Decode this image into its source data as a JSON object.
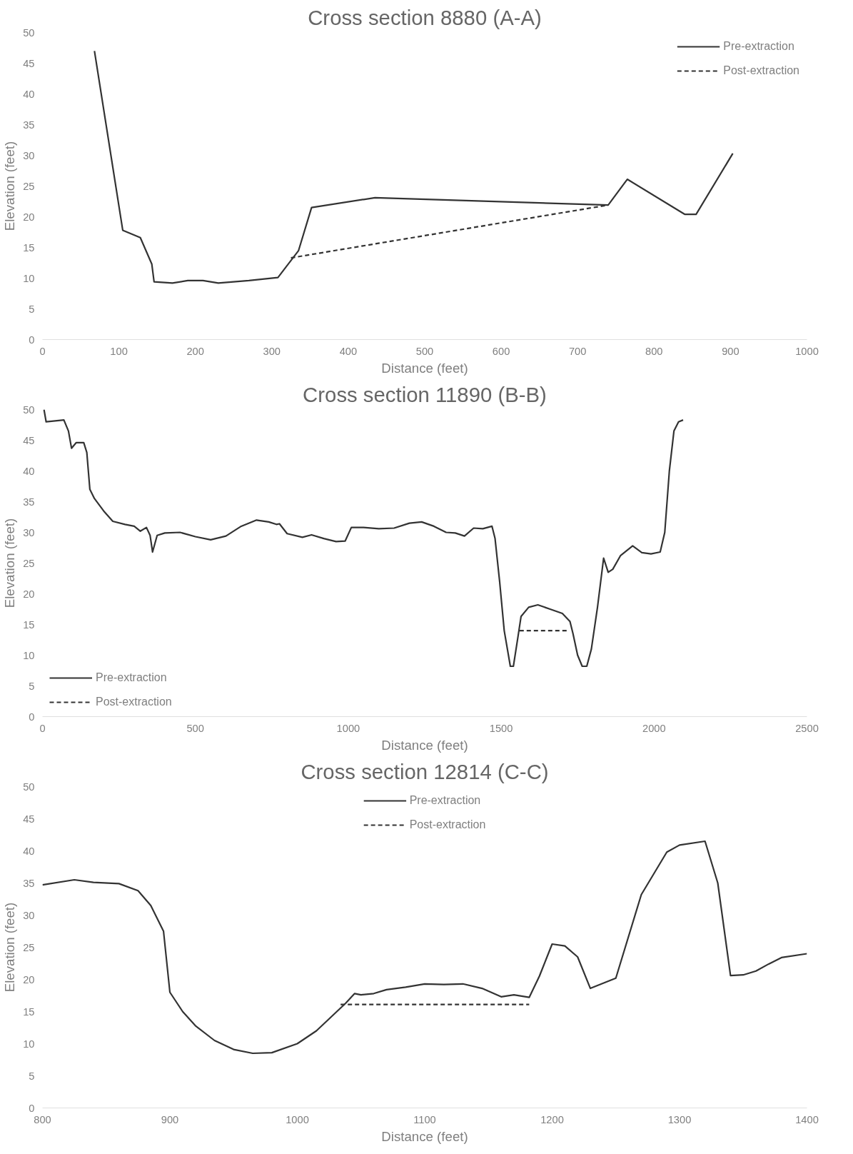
{
  "chart_data": [
    {
      "type": "line",
      "title": "Cross section 8880 (A-A)",
      "xlabel": "Distance (feet)",
      "ylabel": "Elevation (feet)",
      "xlim": [
        0,
        1000
      ],
      "xticks": [
        0,
        100,
        200,
        300,
        400,
        500,
        600,
        700,
        800,
        900,
        1000
      ],
      "ylim": [
        0,
        50
      ],
      "yticks": [
        0,
        5,
        10,
        15,
        20,
        25,
        30,
        35,
        40,
        45,
        50
      ],
      "grid": false,
      "legend": "top right",
      "series": [
        {
          "name": "Pre-extraction",
          "color": "#333333",
          "line_style": "solid",
          "x": [
            68,
            105,
            128,
            143,
            146,
            170,
            190,
            210,
            230,
            270,
            308,
            335,
            352,
            435,
            740,
            765,
            840,
            855,
            903
          ],
          "values": [
            47,
            17.8,
            16.6,
            12.3,
            9.4,
            9.2,
            9.6,
            9.6,
            9.2,
            9.6,
            10.1,
            14.5,
            21.5,
            23.1,
            21.9,
            26.1,
            20.4,
            20.4,
            30.3
          ]
        },
        {
          "name": "Post-extraction",
          "color": "#333333",
          "line_style": "dashed",
          "x": [
            325,
            740
          ],
          "values": [
            13.3,
            21.9
          ]
        }
      ]
    },
    {
      "type": "line",
      "title": "Cross section 11890 (B-B)",
      "xlabel": "Distance (feet)",
      "ylabel": "Elevation (feet)",
      "xlim": [
        0,
        2500
      ],
      "xticks": [
        0,
        500,
        1000,
        1500,
        2000,
        2500
      ],
      "ylim": [
        0,
        50
      ],
      "yticks": [
        0,
        5,
        10,
        15,
        20,
        25,
        30,
        35,
        40,
        45,
        50
      ],
      "grid": false,
      "legend": "bottom left",
      "series": [
        {
          "name": "Pre-extraction",
          "color": "#333333",
          "line_style": "solid",
          "x": [
            5,
            12,
            30,
            70,
            85,
            95,
            110,
            135,
            145,
            155,
            170,
            200,
            230,
            270,
            300,
            320,
            340,
            352,
            360,
            375,
            400,
            450,
            500,
            550,
            600,
            650,
            700,
            740,
            765,
            775,
            800,
            850,
            880,
            920,
            960,
            990,
            1010,
            1050,
            1100,
            1150,
            1200,
            1240,
            1280,
            1320,
            1350,
            1380,
            1410,
            1440,
            1470,
            1480,
            1495,
            1510,
            1530,
            1540,
            1555,
            1565,
            1590,
            1620,
            1660,
            1700,
            1725,
            1735,
            1750,
            1765,
            1780,
            1795,
            1815,
            1835,
            1850,
            1865,
            1890,
            1930,
            1960,
            1990,
            2020,
            2035,
            2050,
            2065,
            2080,
            2095
          ],
          "values": [
            50,
            48,
            48.1,
            48.3,
            46.5,
            43.7,
            44.6,
            44.6,
            43,
            37,
            35.5,
            33.5,
            31.8,
            31.3,
            31,
            30.2,
            30.8,
            29.5,
            26.8,
            29.5,
            29.9,
            30,
            29.3,
            28.8,
            29.4,
            31,
            32,
            31.7,
            31.3,
            31.4,
            29.8,
            29.2,
            29.6,
            29,
            28.5,
            28.6,
            30.8,
            30.8,
            30.6,
            30.7,
            31.5,
            31.7,
            31,
            30,
            29.9,
            29.4,
            30.7,
            30.6,
            31,
            29,
            22,
            14,
            8.2,
            8.2,
            13,
            16.3,
            17.8,
            18.2,
            17.5,
            16.8,
            15.5,
            13.5,
            10,
            8.2,
            8.2,
            11,
            17.8,
            25.8,
            23.5,
            24,
            26.2,
            27.8,
            26.7,
            26.5,
            26.8,
            30,
            40,
            46.5,
            48,
            48.3
          ]
        },
        {
          "name": "Post-extraction",
          "color": "#333333",
          "line_style": "dashed",
          "x": [
            1560,
            1720
          ],
          "values": [
            14,
            14
          ]
        }
      ]
    },
    {
      "type": "line",
      "title": "Cross section 12814 (C-C)",
      "xlabel": "Distance (feet)",
      "ylabel": "Elevation (feet)",
      "xlim": [
        800,
        1400
      ],
      "xticks": [
        800,
        900,
        1000,
        1100,
        1200,
        1300,
        1400
      ],
      "ylim": [
        0,
        50
      ],
      "yticks": [
        0,
        5,
        10,
        15,
        20,
        25,
        30,
        35,
        40,
        45,
        50
      ],
      "grid": false,
      "legend": "top",
      "series": [
        {
          "name": "Pre-extraction",
          "color": "#333333",
          "line_style": "solid",
          "x": [
            800,
            825,
            840,
            860,
            875,
            885,
            895,
            900,
            910,
            920,
            935,
            950,
            965,
            980,
            1000,
            1015,
            1030,
            1038,
            1045,
            1050,
            1060,
            1070,
            1085,
            1100,
            1115,
            1130,
            1145,
            1160,
            1170,
            1182,
            1190,
            1200,
            1210,
            1220,
            1230,
            1250,
            1270,
            1290,
            1300,
            1320,
            1330,
            1340,
            1350,
            1360,
            1370,
            1380,
            1400
          ],
          "values": [
            34.7,
            35.5,
            35.1,
            34.9,
            33.8,
            31.5,
            27.5,
            18,
            15,
            12.8,
            10.5,
            9.1,
            8.5,
            8.6,
            10,
            12,
            14.8,
            16.3,
            17.8,
            17.6,
            17.8,
            18.4,
            18.8,
            19.3,
            19.2,
            19.3,
            18.6,
            17.3,
            17.6,
            17.2,
            20.5,
            25.5,
            25.2,
            23.5,
            18.6,
            20.2,
            33.2,
            39.8,
            40.9,
            41.5,
            35,
            20.6,
            20.7,
            21.3,
            22.4,
            23.4,
            24
          ]
        },
        {
          "name": "Post-extraction",
          "color": "#333333",
          "line_style": "dashed",
          "x": [
            1034,
            1182
          ],
          "values": [
            16.1,
            16.1
          ]
        }
      ]
    }
  ]
}
